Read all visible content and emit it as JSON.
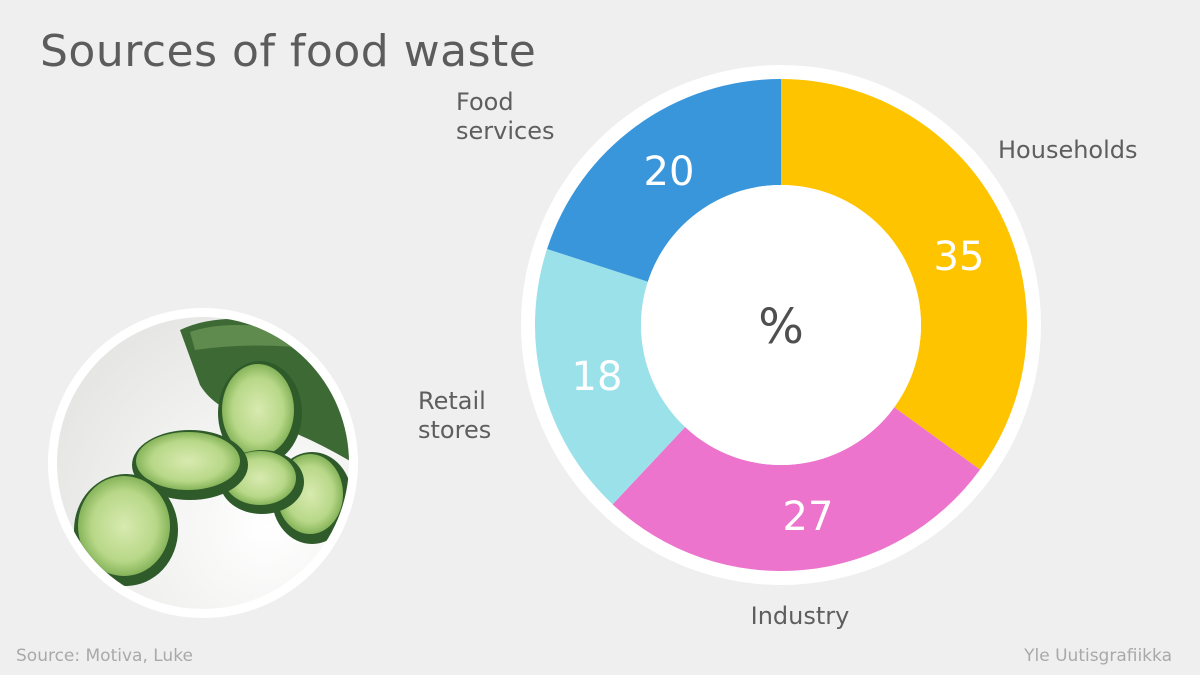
{
  "title": "Sources of food waste",
  "source": "Source: Motiva, Luke",
  "credit": "Yle Uutisgrafiikka",
  "center_label": "%",
  "photo": {
    "icon": "sliced-cucumber-icon"
  },
  "colors": {
    "background": "#efefef",
    "Households": "#ffc400",
    "Industry": "#ec74cc",
    "Retail stores": "#9ae1ea",
    "Food services": "#3a96db"
  },
  "chart_data": {
    "type": "pie",
    "variant": "donut",
    "categories": [
      "Households",
      "Industry",
      "Retail stores",
      "Food services"
    ],
    "label_lines": [
      [
        "Households"
      ],
      [
        "Industry"
      ],
      [
        "Retail",
        "stores"
      ],
      [
        "Food",
        "services"
      ]
    ],
    "values": [
      35,
      27,
      18,
      20
    ],
    "unit": "%"
  }
}
